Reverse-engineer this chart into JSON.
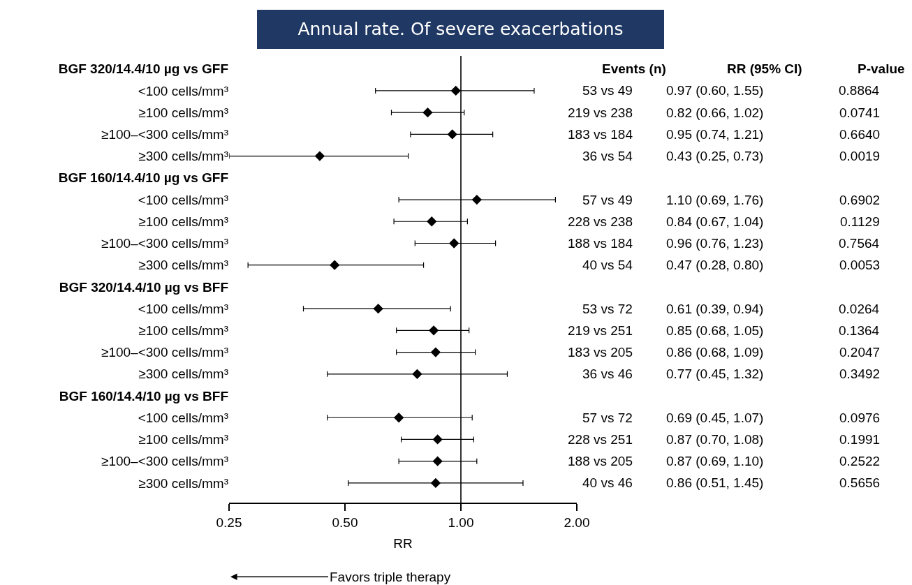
{
  "chart_data": {
    "type": "scatter",
    "orientation": "horizontal",
    "title": "Annual rate. Of severe exacerbations",
    "xlabel": "RR",
    "log": "x",
    "grid": false,
    "marker": "diamond",
    "categories": [
      "BGF 320/14.4/10 µg vs GFF",
      "<100 cells/mm³",
      "≥100 cells/mm³",
      "≥100–<300 cells/mm³",
      "≥300 cells/mm³",
      "BGF 160/14.4/10 µg vs GFF",
      "<100 cells/mm³",
      "≥100 cells/mm³",
      "≥100–<300 cells/mm³",
      "≥300 cells/mm³",
      "BGF 320/14.4/10 µg vs BFF",
      "<100 cells/mm³",
      "≥100 cells/mm³",
      "≥100–<300 cells/mm³",
      "≥300 cells/mm³",
      "BGF 160/14.4/10 µg vs BFF",
      "<100 cells/mm³",
      "≥100 cells/mm³",
      "≥100–<300 cells/mm³",
      "≥300 cells/mm³"
    ],
    "series": [
      {
        "color": "#000000",
        "values": [
          null,
          0.97,
          0.82,
          0.95,
          0.43,
          null,
          1.1,
          0.84,
          0.96,
          0.47,
          null,
          0.61,
          0.85,
          0.86,
          0.77,
          null,
          0.69,
          0.87,
          0.87,
          0.86
        ],
        "errors": [
          null,
          [
            0.6,
            1.55
          ],
          [
            0.66,
            1.02
          ],
          [
            0.74,
            1.21
          ],
          [
            0.25,
            0.73
          ],
          null,
          [
            0.69,
            1.76
          ],
          [
            0.67,
            1.04
          ],
          [
            0.76,
            1.23
          ],
          [
            0.28,
            0.8
          ],
          null,
          [
            0.39,
            0.94
          ],
          [
            0.68,
            1.05
          ],
          [
            0.68,
            1.09
          ],
          [
            0.45,
            1.32
          ],
          null,
          [
            0.45,
            1.07
          ],
          [
            0.7,
            1.08
          ],
          [
            0.69,
            1.1
          ],
          [
            0.51,
            1.45
          ]
        ],
        "value_labels": [
          null,
          "0.97 (0.60, 1.55)",
          "0.82 (0.66, 1.02)",
          "0.95 (0.74, 1.21)",
          "0.43 (0.25, 0.73)",
          null,
          "1.10 (0.69, 1.76)",
          "0.84 (0.67, 1.04)",
          "0.96 (0.76, 1.23)",
          "0.47 (0.28, 0.80)",
          null,
          "0.61 (0.39, 0.94)",
          "0.85 (0.68, 1.05)",
          "0.86 (0.68, 1.09)",
          "0.77 (0.45, 1.32)",
          null,
          "0.69 (0.45, 1.07)",
          "0.87 (0.70, 1.08)",
          "0.87 (0.69, 1.10)",
          "0.86 (0.51, 1.45)"
        ]
      }
    ],
    "xlim": [
      0.25,
      2
    ],
    "xticks": [
      0.25,
      {
        "value": 0.5,
        "label": "0.50"
      },
      {
        "value": 1,
        "label": "1.00"
      },
      {
        "value": 2,
        "label": "2.00"
      }
    ],
    "ref_lines": [
      {
        "axis": "x",
        "value": 1,
        "color": "#000000"
      }
    ],
    "annotations": [
      "Events (n)",
      "RR (95% CI)",
      "P-value",
      "53 vs 49",
      "219 vs 238",
      "183 vs 184",
      "36 vs 54",
      "57 vs 49",
      "228 vs 238",
      "188 vs 184",
      "40 vs 54",
      "53 vs 72",
      "219 vs 251",
      "183 vs 205",
      "36 vs 46",
      "57 vs 72",
      "228 vs 251",
      "188 vs 205",
      "40 vs 46",
      "0.8864",
      "0.0741",
      "0.6640",
      "0.0019",
      "0.6902",
      "0.1129",
      "0.7564",
      "0.0053",
      "0.0264",
      "0.1364",
      "0.2047",
      "0.3492",
      "0.0976",
      "0.1991",
      "0.2522",
      "0.5656",
      "Favors triple therapy"
    ]
  }
}
